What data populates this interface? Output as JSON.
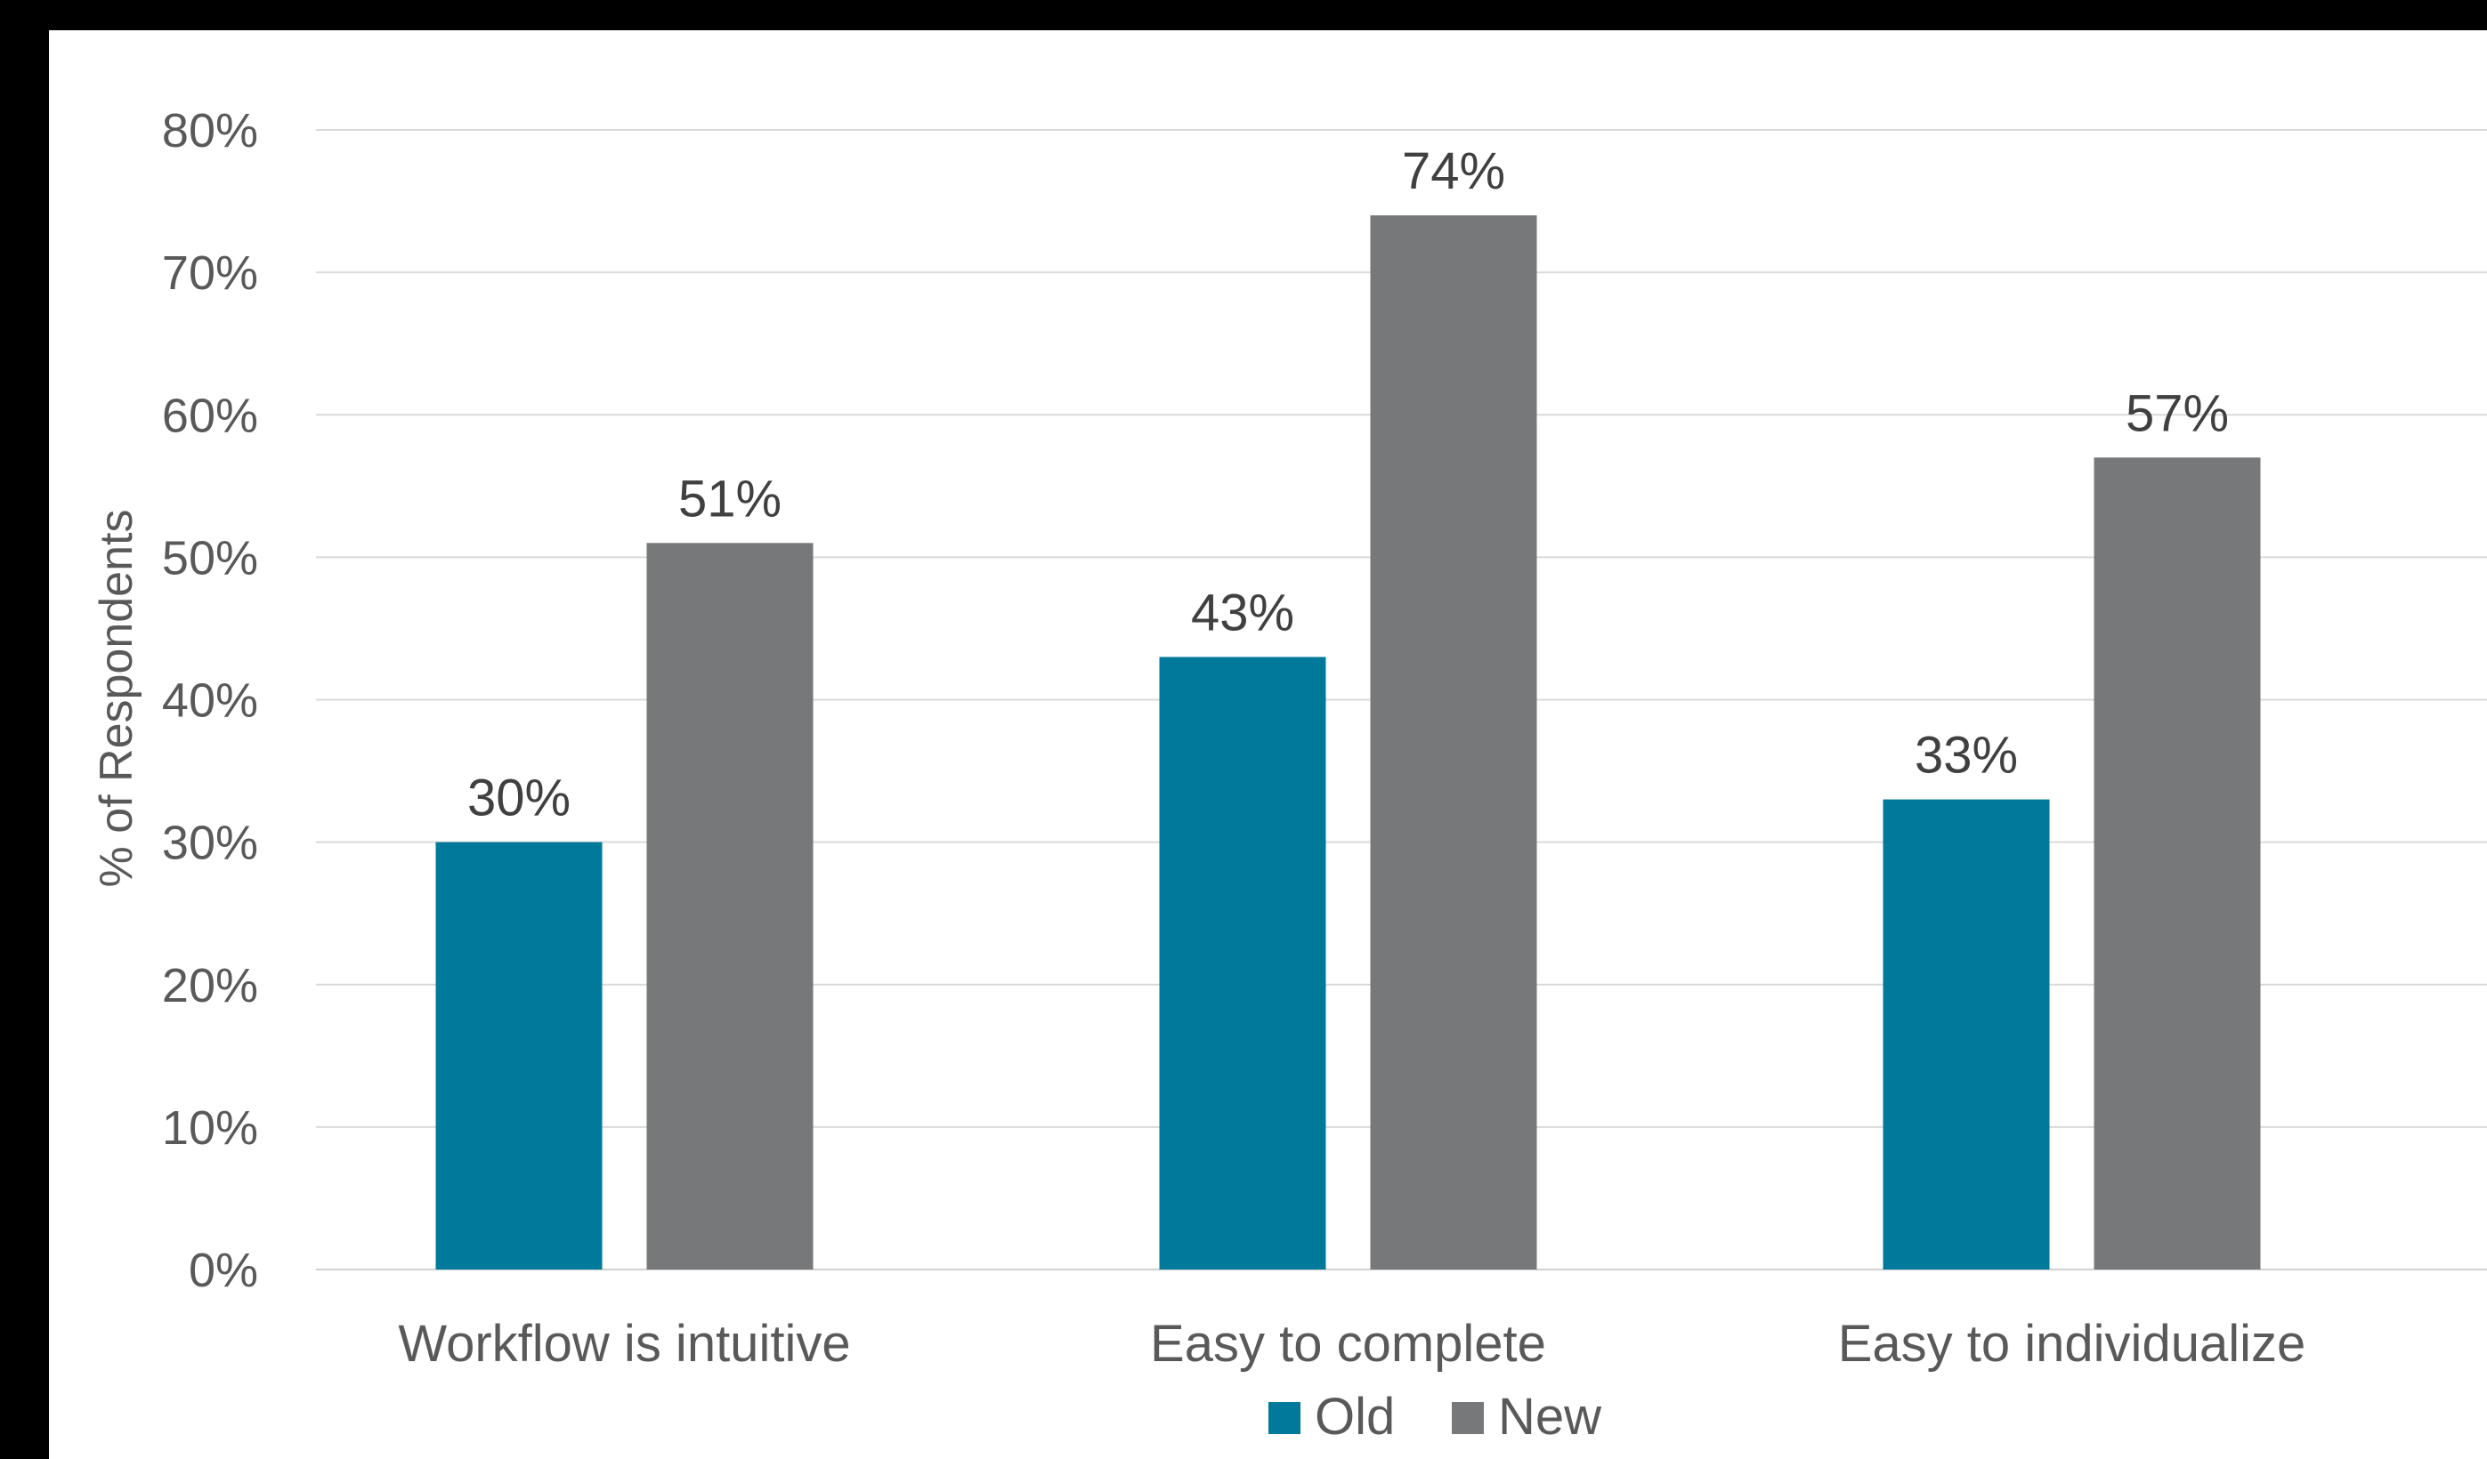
{
  "chart_data": {
    "type": "bar",
    "title": "",
    "xlabel": "",
    "ylabel": "% of Respondents",
    "categories": [
      "Workflow is intuitive",
      "Easy to complete",
      "Easy to individualize"
    ],
    "series": [
      {
        "name": "Old",
        "values": [
          30,
          43,
          33
        ],
        "color": "#00799B"
      },
      {
        "name": "New",
        "values": [
          51,
          74,
          57
        ],
        "color": "#77787A"
      }
    ],
    "ylim": [
      0,
      80
    ],
    "y_ticks": [
      0,
      10,
      20,
      30,
      40,
      50,
      60,
      70,
      80
    ],
    "value_format": "percent",
    "grid": true,
    "legend_position": "bottom-center"
  }
}
